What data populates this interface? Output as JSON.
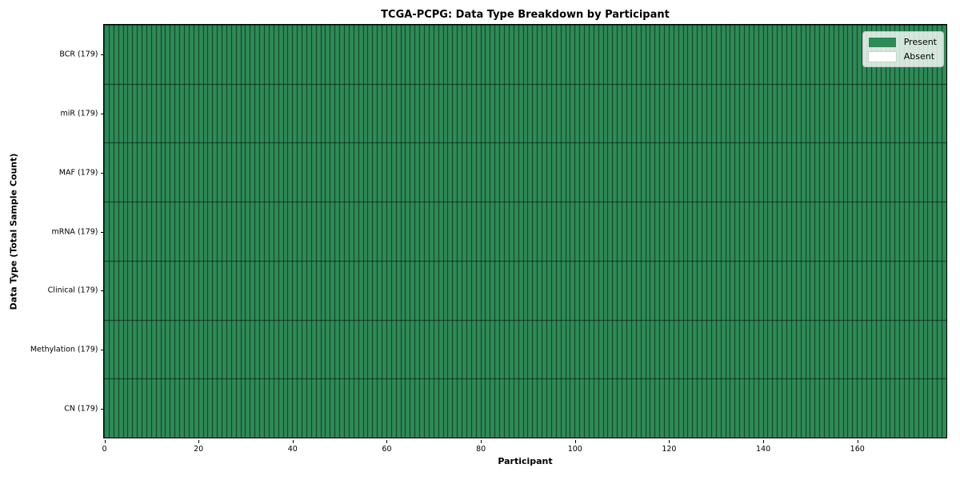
{
  "chart_data": {
    "type": "heatmap",
    "title": "TCGA-PCPG: Data Type Breakdown by Participant",
    "xlabel": "Participant",
    "ylabel": "Data Type (Total Sample Count)",
    "n_participants": 179,
    "xlim": [
      0,
      179
    ],
    "x_ticks": [
      0,
      20,
      40,
      60,
      80,
      100,
      120,
      140,
      160
    ],
    "rows": [
      {
        "label": "BCR (179)",
        "data_type": "BCR",
        "total_samples": 179,
        "present_count": 179,
        "absent_indices": []
      },
      {
        "label": "miR (179)",
        "data_type": "miR",
        "total_samples": 179,
        "present_count": 179,
        "absent_indices": []
      },
      {
        "label": "MAF (179)",
        "data_type": "MAF",
        "total_samples": 179,
        "present_count": 179,
        "absent_indices": []
      },
      {
        "label": "mRNA (179)",
        "data_type": "mRNA",
        "total_samples": 179,
        "present_count": 179,
        "absent_indices": []
      },
      {
        "label": "Clinical (179)",
        "data_type": "Clinical",
        "total_samples": 179,
        "present_count": 179,
        "absent_indices": []
      },
      {
        "label": "Methylation (179)",
        "data_type": "Methylation",
        "total_samples": 179,
        "present_count": 179,
        "absent_indices": []
      },
      {
        "label": "CN (179)",
        "data_type": "CN",
        "total_samples": 179,
        "present_count": 179,
        "absent_indices": []
      }
    ],
    "legend": {
      "position": "upper right",
      "entries": [
        {
          "label": "Present",
          "color": "#2e8b57"
        },
        {
          "label": "Absent",
          "color": "#ffffff"
        }
      ]
    },
    "colors": {
      "present": "#2e8b57",
      "absent": "#ffffff",
      "cell_edge": "rgba(0,0,0,0.6)",
      "axis": "#000000",
      "background": "#ffffff"
    },
    "grid": false
  }
}
